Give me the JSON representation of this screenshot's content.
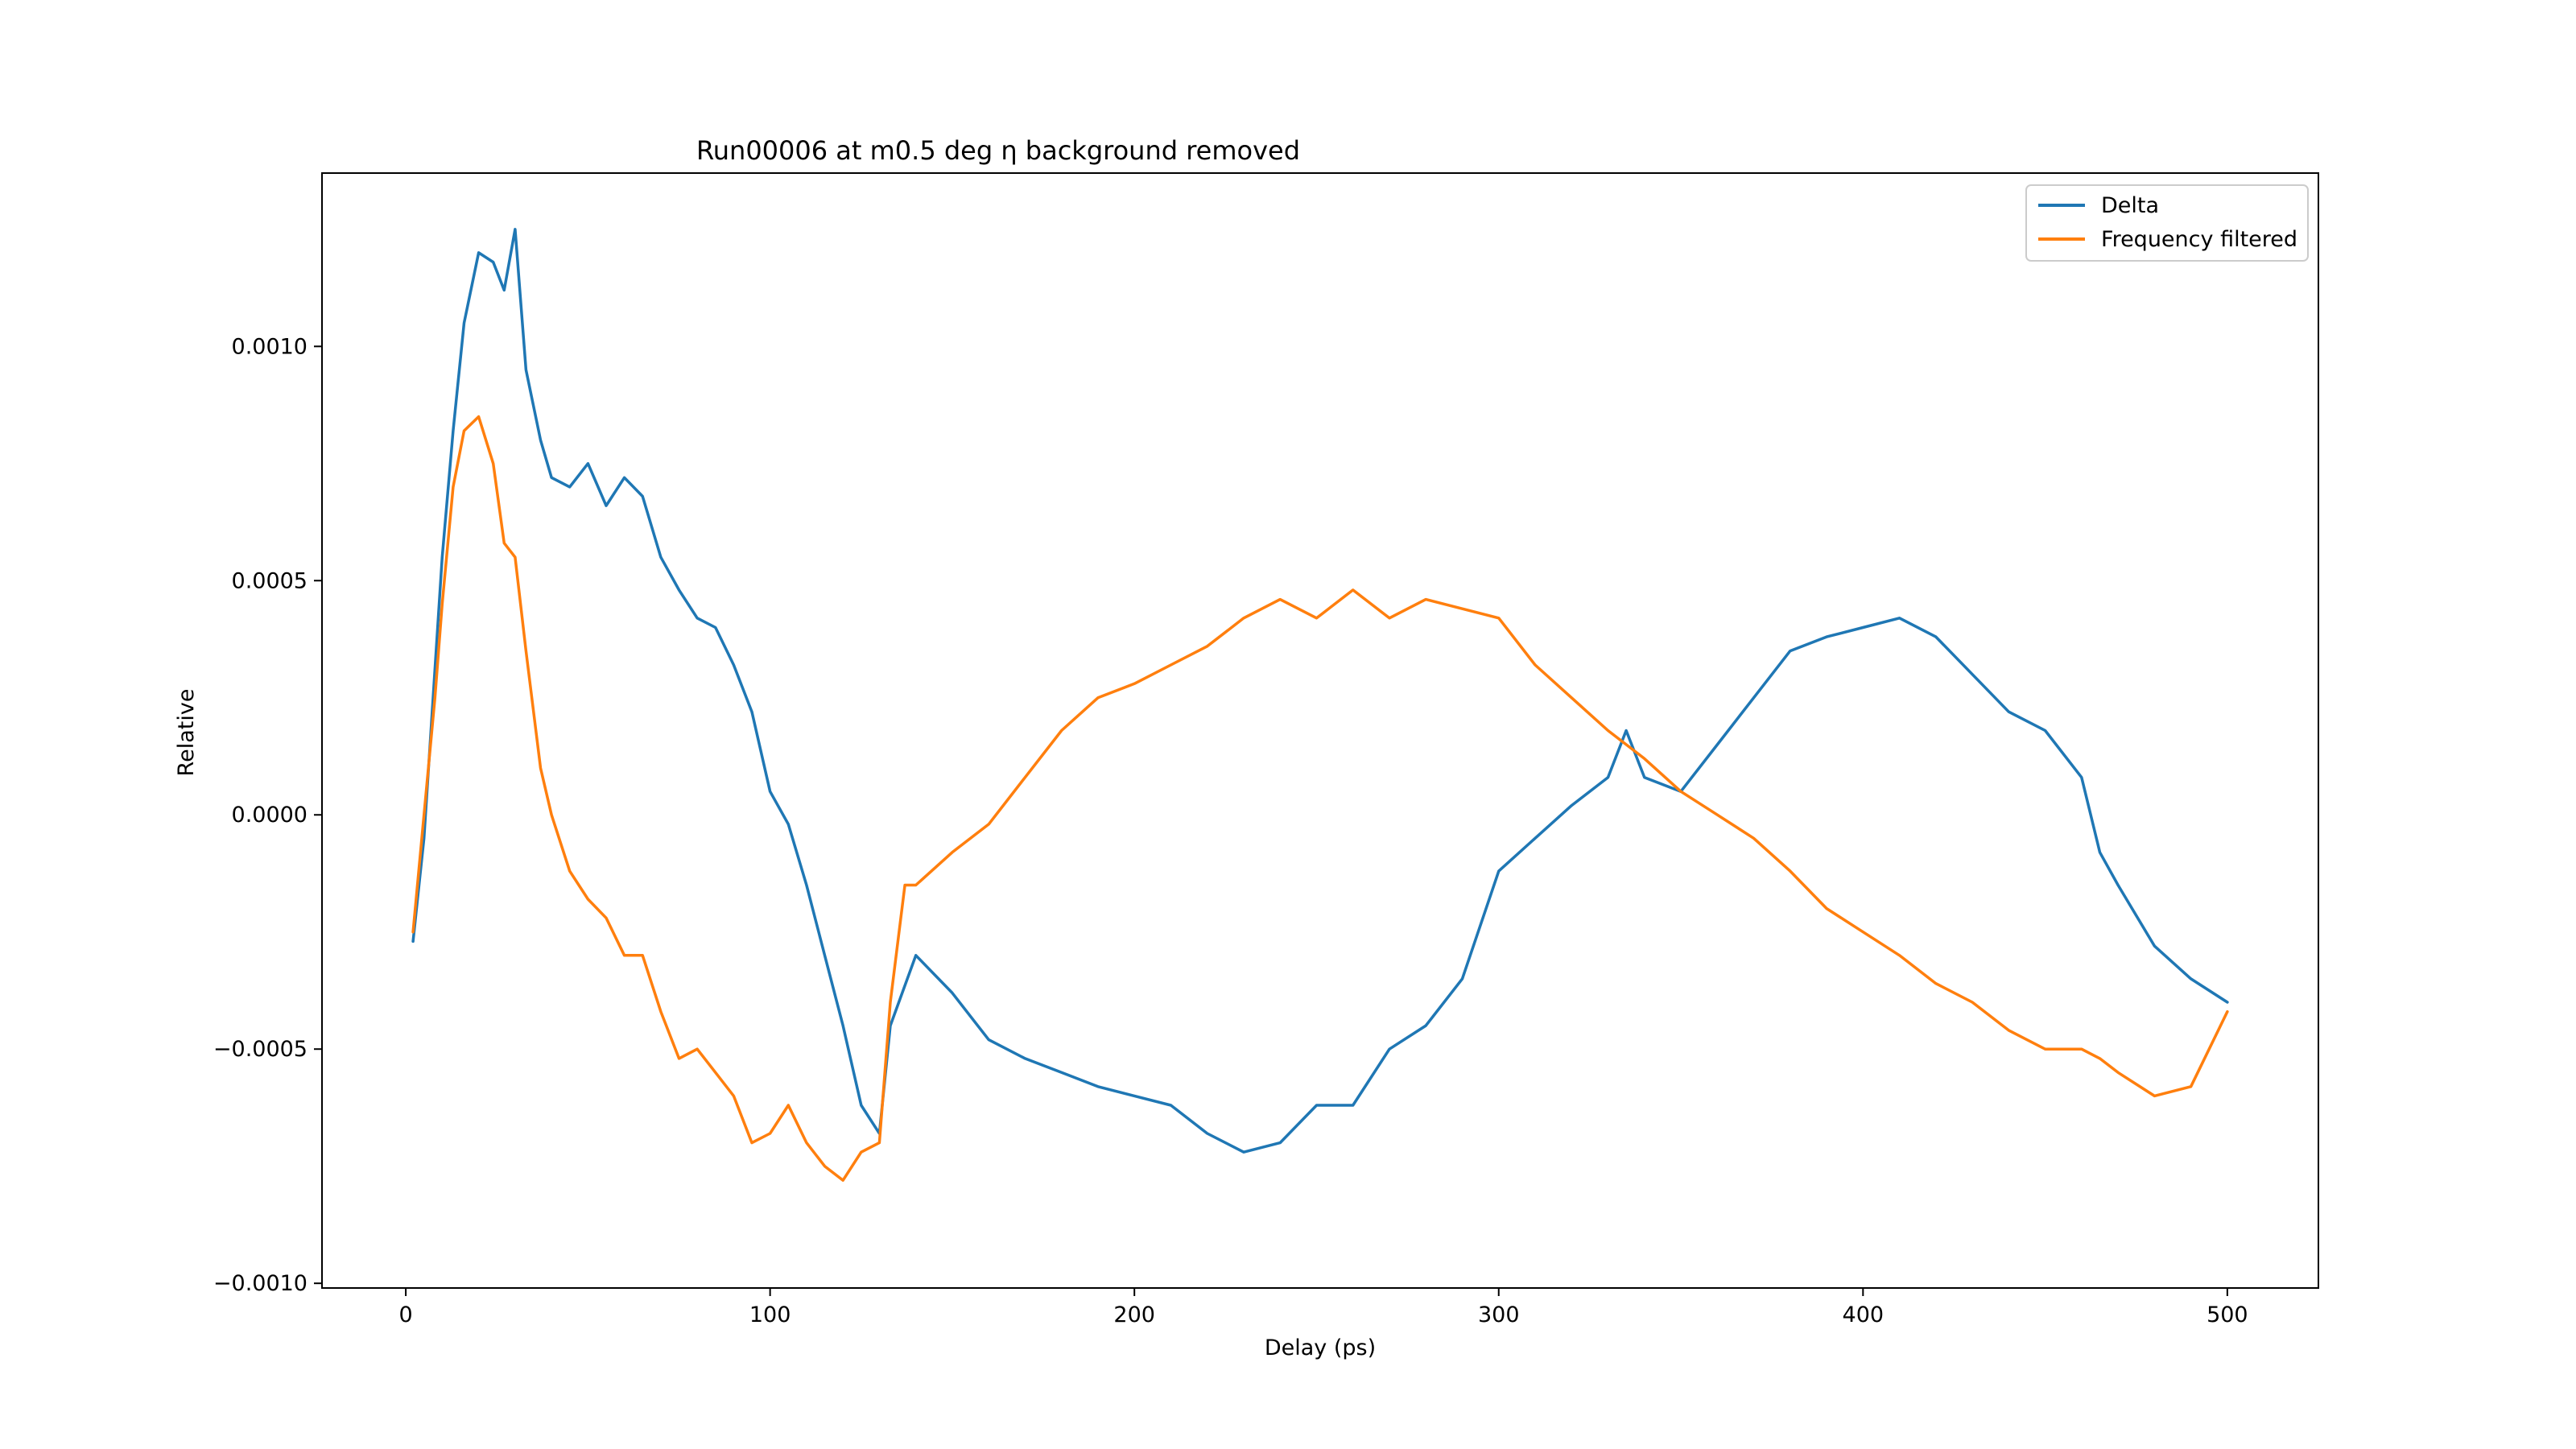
{
  "chart_data": {
    "type": "line",
    "title": "Run00006 at m0.5 deg η background removed",
    "xlabel": "Delay (ps)",
    "ylabel": "Relative",
    "xlim": [
      -23,
      525
    ],
    "ylim": [
      -0.00101,
      0.00137
    ],
    "xticks": [
      0,
      100,
      200,
      300,
      400,
      500
    ],
    "xtick_labels": [
      "0",
      "100",
      "200",
      "300",
      "400",
      "500"
    ],
    "yticks": [
      -0.001,
      -0.0005,
      0.0,
      0.0005,
      0.001
    ],
    "ytick_labels": [
      "−0.0010",
      "−0.0005",
      "0.0000",
      "0.0005",
      "0.0010"
    ],
    "grid": false,
    "legend": "top-right",
    "series": [
      {
        "name": "Delta",
        "color": "#1f77b4",
        "x": [
          2,
          5,
          10,
          13,
          16,
          20,
          24,
          27,
          30,
          33,
          37,
          40,
          45,
          50,
          55,
          60,
          65,
          70,
          75,
          80,
          85,
          90,
          95,
          100,
          105,
          110,
          115,
          120,
          125,
          130,
          133,
          140,
          150,
          160,
          170,
          180,
          190,
          200,
          210,
          220,
          230,
          240,
          250,
          260,
          270,
          280,
          290,
          300,
          310,
          320,
          330,
          335,
          340,
          350,
          360,
          370,
          380,
          390,
          400,
          410,
          420,
          430,
          440,
          450,
          460,
          465,
          470,
          480,
          490,
          500
        ],
        "y": [
          -0.00027,
          -5e-05,
          0.00055,
          0.00082,
          0.00105,
          0.0012,
          0.00118,
          0.00112,
          0.00125,
          0.00095,
          0.0008,
          0.00072,
          0.0007,
          0.00075,
          0.00066,
          0.00072,
          0.00068,
          0.00055,
          0.00048,
          0.00042,
          0.0004,
          0.00032,
          0.00022,
          5e-05,
          -2e-05,
          -0.00015,
          -0.0003,
          -0.00045,
          -0.00062,
          -0.00068,
          -0.00045,
          -0.0003,
          -0.00038,
          -0.00048,
          -0.00052,
          -0.00055,
          -0.00058,
          -0.0006,
          -0.00062,
          -0.00068,
          -0.00072,
          -0.0007,
          -0.00062,
          -0.00062,
          -0.0005,
          -0.00045,
          -0.00035,
          -0.00012,
          -5e-05,
          2e-05,
          8e-05,
          0.00018,
          8e-05,
          5e-05,
          0.00015,
          0.00025,
          0.00035,
          0.00038,
          0.0004,
          0.00042,
          0.00038,
          0.0003,
          0.00022,
          0.00018,
          8e-05,
          -8e-05,
          -0.00015,
          -0.00028,
          -0.00035,
          -0.0004
        ]
      },
      {
        "name": "Frequency filtered",
        "color": "#ff7f0e",
        "x": [
          2,
          5,
          8,
          10,
          13,
          16,
          20,
          24,
          27,
          30,
          33,
          37,
          40,
          45,
          50,
          55,
          60,
          65,
          70,
          75,
          80,
          85,
          90,
          95,
          100,
          105,
          110,
          115,
          120,
          125,
          130,
          133,
          137,
          140,
          150,
          160,
          170,
          180,
          190,
          200,
          210,
          220,
          230,
          240,
          250,
          260,
          270,
          280,
          290,
          300,
          310,
          320,
          330,
          340,
          350,
          360,
          370,
          380,
          390,
          400,
          410,
          420,
          430,
          440,
          450,
          460,
          465,
          470,
          480,
          490,
          500
        ],
        "y": [
          -0.00025,
          0.0,
          0.00025,
          0.00045,
          0.0007,
          0.00082,
          0.00085,
          0.00075,
          0.00058,
          0.00055,
          0.00035,
          0.0001,
          0.0,
          -0.00012,
          -0.00018,
          -0.00022,
          -0.0003,
          -0.0003,
          -0.00042,
          -0.00052,
          -0.0005,
          -0.00055,
          -0.0006,
          -0.0007,
          -0.00068,
          -0.00062,
          -0.0007,
          -0.00075,
          -0.00078,
          -0.00072,
          -0.0007,
          -0.0004,
          -0.00015,
          -0.00015,
          -8e-05,
          -2e-05,
          8e-05,
          0.00018,
          0.00025,
          0.00028,
          0.00032,
          0.00036,
          0.00042,
          0.00046,
          0.00042,
          0.00048,
          0.00042,
          0.00046,
          0.00044,
          0.00042,
          0.00032,
          0.00025,
          0.00018,
          0.00012,
          5e-05,
          0.0,
          -5e-05,
          -0.00012,
          -0.0002,
          -0.00025,
          -0.0003,
          -0.00036,
          -0.0004,
          -0.00046,
          -0.0005,
          -0.0005,
          -0.00052,
          -0.00055,
          -0.0006,
          -0.00058,
          -0.00042
        ]
      }
    ]
  }
}
